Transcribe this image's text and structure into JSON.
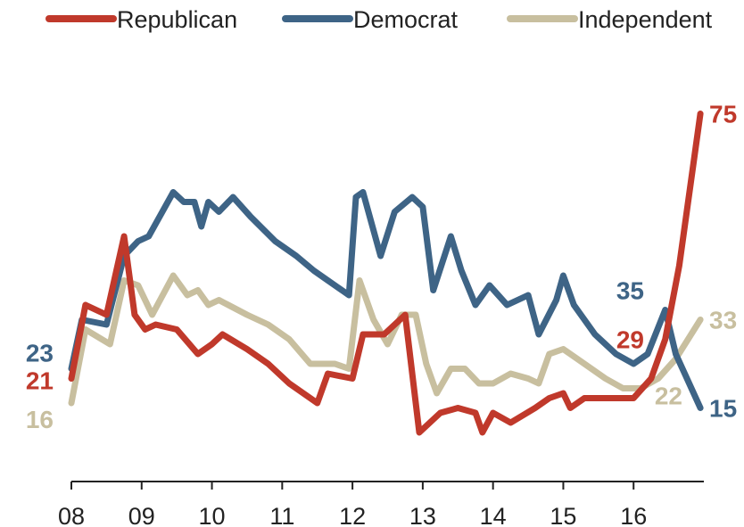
{
  "chart_data": {
    "type": "line",
    "title": "",
    "xlabel": "",
    "ylabel": "",
    "x_tick_labels": [
      "08",
      "09",
      "10",
      "11",
      "12",
      "13",
      "14",
      "15",
      "16"
    ],
    "x_range": [
      2008.0,
      2017.0
    ],
    "y_range": [
      0,
      80
    ],
    "grid": false,
    "legend": "top",
    "series": [
      {
        "name": "Republican",
        "color": "#c0392b",
        "start_label": "21",
        "end_label": "75",
        "points": [
          [
            2008.0,
            21
          ],
          [
            2008.2,
            36
          ],
          [
            2008.5,
            34
          ],
          [
            2008.75,
            50
          ],
          [
            2008.9,
            34
          ],
          [
            2009.05,
            31
          ],
          [
            2009.2,
            32
          ],
          [
            2009.5,
            31
          ],
          [
            2009.8,
            26
          ],
          [
            2010.0,
            28
          ],
          [
            2010.15,
            30
          ],
          [
            2010.5,
            27
          ],
          [
            2010.8,
            24
          ],
          [
            2011.1,
            20
          ],
          [
            2011.5,
            16
          ],
          [
            2011.65,
            22
          ],
          [
            2012.0,
            21
          ],
          [
            2012.15,
            30
          ],
          [
            2012.45,
            30
          ],
          [
            2012.6,
            32
          ],
          [
            2012.75,
            34
          ],
          [
            2012.95,
            10
          ],
          [
            2013.1,
            12
          ],
          [
            2013.25,
            14
          ],
          [
            2013.5,
            15
          ],
          [
            2013.75,
            14
          ],
          [
            2013.85,
            10
          ],
          [
            2014.0,
            14
          ],
          [
            2014.25,
            12
          ],
          [
            2014.6,
            15
          ],
          [
            2014.8,
            17
          ],
          [
            2015.0,
            18
          ],
          [
            2015.1,
            15
          ],
          [
            2015.3,
            17
          ],
          [
            2015.6,
            17
          ],
          [
            2016.0,
            17
          ],
          [
            2016.25,
            21
          ],
          [
            2016.45,
            29
          ],
          [
            2016.65,
            44
          ],
          [
            2016.95,
            75
          ]
        ]
      },
      {
        "name": "Democrat",
        "color": "#3e6486",
        "start_label": "23",
        "end_label": "15",
        "annotation_label": "35",
        "points": [
          [
            2008.0,
            23
          ],
          [
            2008.15,
            33
          ],
          [
            2008.5,
            32
          ],
          [
            2008.75,
            46
          ],
          [
            2008.95,
            49
          ],
          [
            2009.1,
            50
          ],
          [
            2009.45,
            59
          ],
          [
            2009.6,
            57
          ],
          [
            2009.75,
            57
          ],
          [
            2009.85,
            52
          ],
          [
            2009.95,
            57
          ],
          [
            2010.1,
            55
          ],
          [
            2010.3,
            58
          ],
          [
            2010.55,
            54
          ],
          [
            2010.9,
            49
          ],
          [
            2011.2,
            46
          ],
          [
            2011.45,
            43
          ],
          [
            2011.65,
            41
          ],
          [
            2011.95,
            38
          ],
          [
            2012.05,
            58
          ],
          [
            2012.15,
            59
          ],
          [
            2012.4,
            46
          ],
          [
            2012.6,
            55
          ],
          [
            2012.85,
            58
          ],
          [
            2013.0,
            56
          ],
          [
            2013.15,
            39
          ],
          [
            2013.4,
            50
          ],
          [
            2013.55,
            43
          ],
          [
            2013.75,
            36
          ],
          [
            2013.95,
            40
          ],
          [
            2014.2,
            36
          ],
          [
            2014.5,
            38
          ],
          [
            2014.65,
            30
          ],
          [
            2014.9,
            37
          ],
          [
            2015.0,
            42
          ],
          [
            2015.15,
            36
          ],
          [
            2015.45,
            30
          ],
          [
            2015.75,
            26
          ],
          [
            2016.0,
            24
          ],
          [
            2016.2,
            26
          ],
          [
            2016.45,
            35
          ],
          [
            2016.6,
            26
          ],
          [
            2016.95,
            15
          ]
        ]
      },
      {
        "name": "Independent",
        "color": "#c8bf9f",
        "start_label": "16",
        "end_label": "33",
        "annotation_label": "22",
        "points": [
          [
            2008.0,
            16
          ],
          [
            2008.2,
            31
          ],
          [
            2008.55,
            28
          ],
          [
            2008.75,
            41
          ],
          [
            2008.95,
            40
          ],
          [
            2009.15,
            34
          ],
          [
            2009.45,
            42
          ],
          [
            2009.65,
            38
          ],
          [
            2009.8,
            39
          ],
          [
            2009.95,
            36
          ],
          [
            2010.1,
            37
          ],
          [
            2010.5,
            34
          ],
          [
            2010.8,
            32
          ],
          [
            2011.1,
            29
          ],
          [
            2011.4,
            24
          ],
          [
            2011.55,
            24
          ],
          [
            2011.75,
            24
          ],
          [
            2011.95,
            23
          ],
          [
            2012.1,
            41
          ],
          [
            2012.3,
            33
          ],
          [
            2012.5,
            28
          ],
          [
            2012.7,
            34
          ],
          [
            2012.9,
            34
          ],
          [
            2013.05,
            24
          ],
          [
            2013.2,
            18
          ],
          [
            2013.4,
            23
          ],
          [
            2013.6,
            23
          ],
          [
            2013.8,
            20
          ],
          [
            2014.0,
            20
          ],
          [
            2014.25,
            22
          ],
          [
            2014.5,
            21
          ],
          [
            2014.65,
            20
          ],
          [
            2014.8,
            26
          ],
          [
            2015.0,
            27
          ],
          [
            2015.3,
            24
          ],
          [
            2015.6,
            21
          ],
          [
            2015.85,
            19
          ],
          [
            2016.1,
            19
          ],
          [
            2016.35,
            21
          ],
          [
            2016.6,
            25
          ],
          [
            2016.95,
            33
          ]
        ]
      }
    ]
  }
}
